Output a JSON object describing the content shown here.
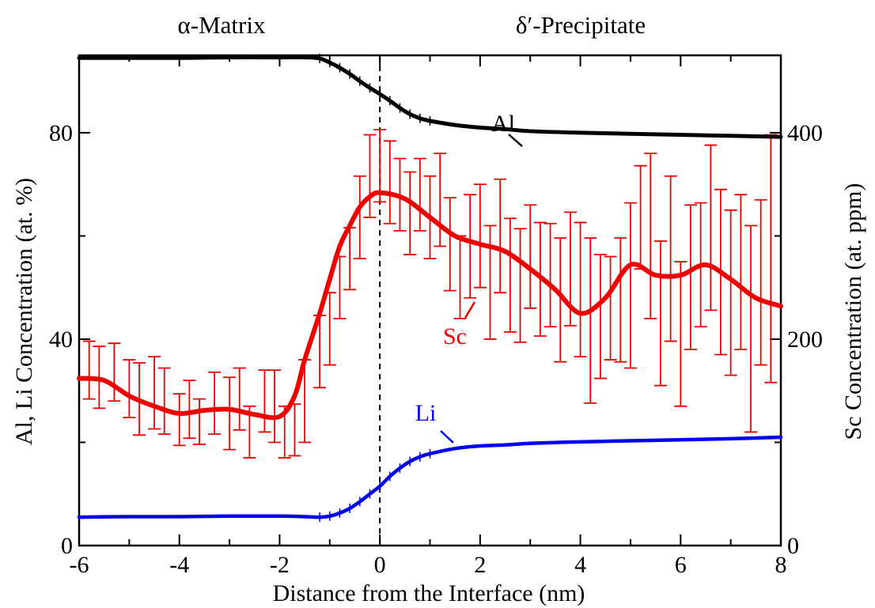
{
  "chart_data": {
    "type": "line",
    "region_labels": {
      "left": "α-Matrix",
      "right": "δ′-Precipitate"
    },
    "xlabel": "Distance from the Interface (nm)",
    "ylabel_left": "Al, Li Concentration (at. %)",
    "ylabel_right": "Sc Concentration (at. ppm)",
    "xlim": [
      -6,
      8
    ],
    "ylim_left": [
      0,
      95
    ],
    "ylim_right": [
      0,
      475
    ],
    "x_ticks": [
      -6,
      -4,
      -2,
      0,
      2,
      4,
      6,
      8
    ],
    "y_ticks_left": [
      0,
      40,
      80
    ],
    "y_ticks_right": [
      0,
      200,
      400
    ],
    "interface_x": 0,
    "series": [
      {
        "name": "Al",
        "axis": "left",
        "color": "#000000",
        "x": [
          -6,
          -5,
          -4,
          -3,
          -2,
          -1.5,
          -1.2,
          -1,
          -0.8,
          -0.6,
          -0.4,
          -0.2,
          0,
          0.2,
          0.4,
          0.6,
          0.8,
          1,
          1.5,
          2,
          2.5,
          3,
          4,
          5,
          6,
          7,
          8
        ],
        "values": [
          94.5,
          94.5,
          94.5,
          94.6,
          94.6,
          94.6,
          94.4,
          93.6,
          92.6,
          91.4,
          90,
          88.7,
          87.5,
          86.2,
          84.8,
          83.6,
          82.8,
          82.3,
          81.5,
          81,
          80.7,
          80.3,
          80,
          79.8,
          79.6,
          79.4,
          79.2
        ]
      },
      {
        "name": "Li",
        "axis": "left",
        "color": "#0000ee",
        "x": [
          -6,
          -5,
          -4,
          -3,
          -2,
          -1.5,
          -1.2,
          -1,
          -0.8,
          -0.6,
          -0.4,
          -0.2,
          0,
          0.2,
          0.4,
          0.6,
          0.8,
          1,
          1.5,
          2,
          2.5,
          3,
          4,
          5,
          6,
          7,
          8
        ],
        "values": [
          5.5,
          5.6,
          5.6,
          5.7,
          5.7,
          5.6,
          5.5,
          5.7,
          6.3,
          7.2,
          8.5,
          10,
          11.5,
          13.4,
          15,
          16.3,
          17.2,
          17.8,
          18.8,
          19.3,
          19.5,
          19.8,
          20.1,
          20.3,
          20.5,
          20.7,
          21
        ]
      },
      {
        "name": "Sc",
        "axis": "right",
        "color": "#ee0000",
        "x": [
          -6,
          -5.5,
          -5,
          -4.5,
          -4,
          -3.5,
          -3,
          -2.5,
          -2,
          -1.7,
          -1.5,
          -1.2,
          -1,
          -0.8,
          -0.6,
          -0.4,
          -0.2,
          0,
          0.5,
          1,
          1.5,
          2,
          2.5,
          3,
          3.5,
          4,
          4.5,
          5,
          5.5,
          6,
          6.5,
          7,
          7.5,
          8
        ],
        "values": [
          162,
          160,
          145,
          135,
          128,
          131,
          132,
          127,
          125,
          145,
          180,
          225,
          258,
          290,
          310,
          328,
          338,
          342,
          336,
          318,
          300,
          292,
          285,
          268,
          248,
          225,
          240,
          272,
          262,
          262,
          272,
          258,
          240,
          232
        ]
      }
    ],
    "sc_error_bars": {
      "axis": "right",
      "x": [
        -5.8,
        -5.6,
        -5.3,
        -5.0,
        -4.8,
        -4.5,
        -4.3,
        -4.0,
        -3.8,
        -3.6,
        -3.3,
        -3.0,
        -2.8,
        -2.6,
        -2.3,
        -2.1,
        -1.9,
        -1.7,
        -1.5,
        -1.2,
        -1.0,
        -0.8,
        -0.6,
        -0.4,
        -0.2,
        0.0,
        0.2,
        0.4,
        0.6,
        0.8,
        1.0,
        1.2,
        1.4,
        1.6,
        1.8,
        2.0,
        2.2,
        2.4,
        2.6,
        2.8,
        3.0,
        3.2,
        3.4,
        3.6,
        3.8,
        4.0,
        4.2,
        4.4,
        4.6,
        4.8,
        5.0,
        5.2,
        5.4,
        5.6,
        5.8,
        6.0,
        6.2,
        6.4,
        6.6,
        6.8,
        7.0,
        7.2,
        7.4,
        7.6,
        7.8
      ],
      "values": [
        170,
        163,
        168,
        152,
        142,
        148,
        140,
        122,
        132,
        120,
        138,
        128,
        142,
        110,
        140,
        135,
        110,
        112,
        140,
        188,
        210,
        250,
        278,
        318,
        358,
        368,
        352,
        340,
        322,
        340,
        318,
        335,
        292,
        260,
        290,
        300,
        255,
        300,
        262,
        252,
        280,
        258,
        262,
        238,
        268,
        248,
        218,
        222,
        230,
        238,
        252,
        318,
        300,
        225,
        278,
        205,
        260,
        272,
        308,
        265,
        245,
        265,
        210,
        255,
        278
      ],
      "errors": [
        28,
        30,
        28,
        28,
        35,
        35,
        32,
        25,
        28,
        22,
        30,
        35,
        30,
        25,
        30,
        35,
        25,
        25,
        40,
        35,
        35,
        30,
        30,
        40,
        40,
        35,
        40,
        35,
        40,
        35,
        40,
        45,
        45,
        40,
        50,
        50,
        55,
        55,
        55,
        55,
        50,
        55,
        50,
        60,
        55,
        65,
        80,
        60,
        50,
        60,
        80,
        50,
        80,
        70,
        80,
        70,
        70,
        60,
        80,
        80,
        80,
        75,
        100,
        80,
        120
      ]
    }
  }
}
